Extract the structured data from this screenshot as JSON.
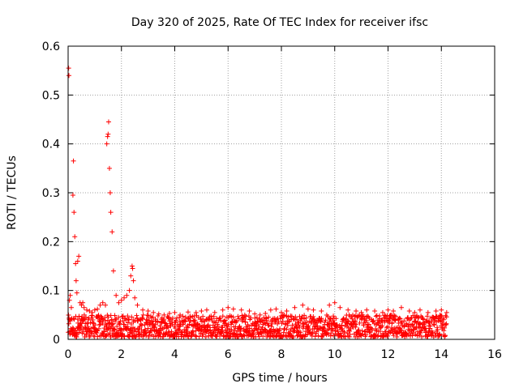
{
  "chart_data": {
    "type": "scatter",
    "title": "Day 320 of 2025, Rate Of TEC Index for receiver ifsc",
    "xlabel": "GPS time / hours",
    "ylabel": "ROTI / TECUs",
    "xlim": [
      0,
      16
    ],
    "ylim": [
      0,
      0.6
    ],
    "x_ticks": [
      0,
      2,
      4,
      6,
      8,
      10,
      12,
      14,
      16
    ],
    "y_ticks": [
      0,
      0.1,
      0.2,
      0.3,
      0.4,
      0.5,
      0.6
    ],
    "y_tick_labels": [
      "0",
      "0.1",
      "0.2",
      "0.3",
      "0.4",
      "0.5",
      "0.6"
    ],
    "grid": true,
    "marker": "+",
    "color": "#ff0000",
    "series": [
      {
        "name": "ROTI",
        "x": [
          0.02,
          0.03,
          0.05,
          0.08,
          0.12,
          0.18,
          0.2,
          0.22,
          0.25,
          0.28,
          0.3,
          0.33,
          0.36,
          0.4,
          0.45,
          0.5,
          0.55,
          0.6,
          0.7,
          0.8,
          0.9,
          1.0,
          1.1,
          1.2,
          1.3,
          1.4,
          1.45,
          1.48,
          1.5,
          1.52,
          1.55,
          1.58,
          1.6,
          1.65,
          1.7,
          1.8,
          1.9,
          2.0,
          2.1,
          2.2,
          2.3,
          2.35,
          2.4,
          2.42,
          2.45,
          2.5,
          2.6,
          2.8,
          3.0,
          3.2,
          3.4,
          3.6,
          3.8,
          4.0,
          4.2,
          4.5,
          4.8,
          5.0,
          5.2,
          5.5,
          5.8,
          6.0,
          6.2,
          6.5,
          6.8,
          7.0,
          7.2,
          7.4,
          7.6,
          7.8,
          8.0,
          8.2,
          8.5,
          8.8,
          9.0,
          9.2,
          9.5,
          9.8,
          10.0,
          10.2,
          10.5,
          10.8,
          11.0,
          11.2,
          11.5,
          11.8,
          12.0,
          12.2,
          12.5,
          12.8,
          13.0,
          13.2,
          13.5,
          13.8,
          14.0,
          14.2
        ],
        "y": [
          0.555,
          0.54,
          0.08,
          0.09,
          0.065,
          0.295,
          0.365,
          0.26,
          0.21,
          0.155,
          0.12,
          0.095,
          0.16,
          0.17,
          0.075,
          0.07,
          0.075,
          0.065,
          0.06,
          0.058,
          0.055,
          0.06,
          0.062,
          0.07,
          0.075,
          0.07,
          0.4,
          0.415,
          0.42,
          0.445,
          0.35,
          0.3,
          0.26,
          0.22,
          0.14,
          0.09,
          0.075,
          0.08,
          0.085,
          0.09,
          0.1,
          0.13,
          0.15,
          0.145,
          0.12,
          0.085,
          0.07,
          0.06,
          0.058,
          0.055,
          0.052,
          0.05,
          0.053,
          0.055,
          0.05,
          0.056,
          0.055,
          0.058,
          0.06,
          0.055,
          0.06,
          0.065,
          0.062,
          0.06,
          0.058,
          0.052,
          0.05,
          0.053,
          0.06,
          0.062,
          0.055,
          0.058,
          0.065,
          0.07,
          0.062,
          0.06,
          0.058,
          0.07,
          0.075,
          0.065,
          0.06,
          0.058,
          0.055,
          0.06,
          0.058,
          0.055,
          0.06,
          0.058,
          0.065,
          0.058,
          0.055,
          0.06,
          0.055,
          0.058,
          0.06,
          0.055
        ]
      }
    ],
    "baseline_band": {
      "x_start": 0,
      "x_end": 14.2,
      "y_low": 0.005,
      "y_high": 0.05
    }
  }
}
